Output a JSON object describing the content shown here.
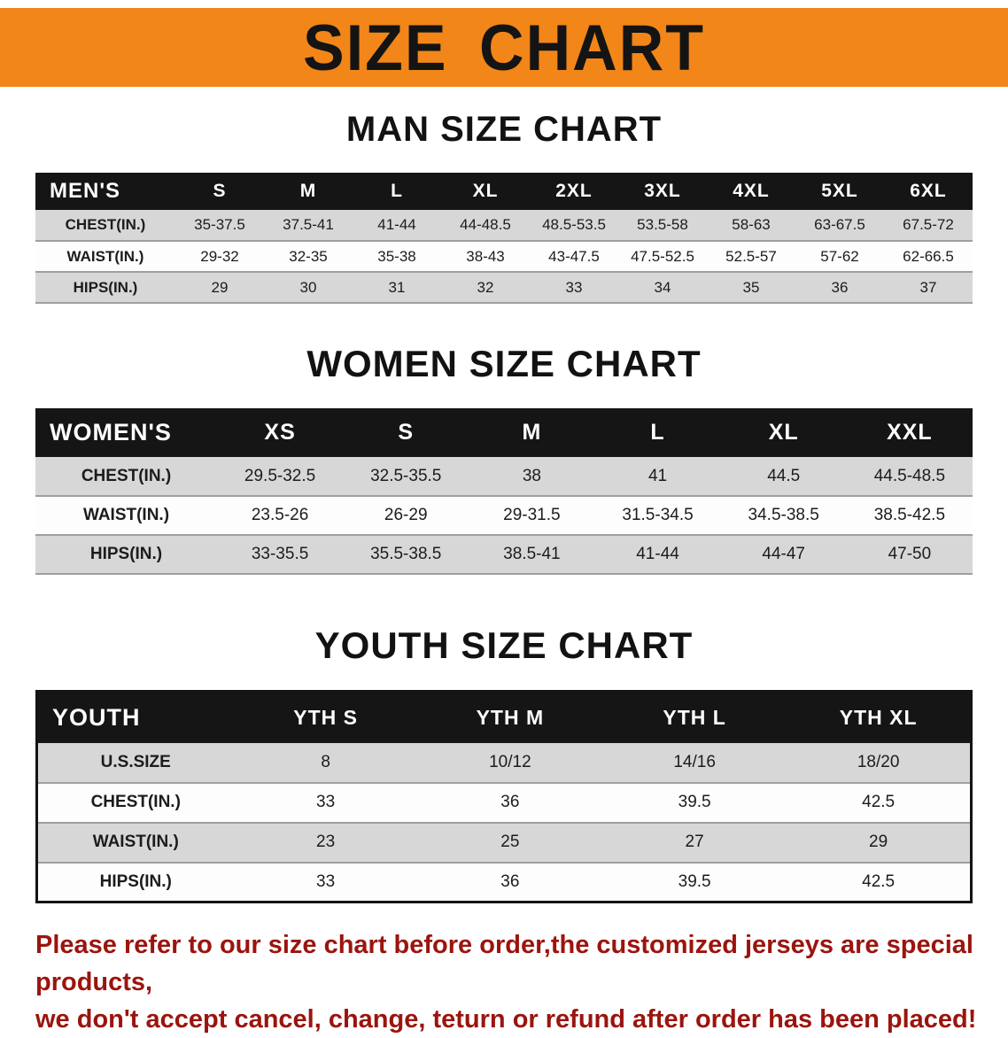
{
  "banner": {
    "title": "SIZE CHART"
  },
  "colors": {
    "banner_bg": "#f28618",
    "table_header_bg": "#151515",
    "row_alt_bg": "#d7d7d7",
    "footer_text": "#9b140e"
  },
  "sections": [
    {
      "key": "mens",
      "heading": "MAN SIZE CHART",
      "table": {
        "corner_label": "MEN'S",
        "columns": [
          "S",
          "M",
          "L",
          "XL",
          "2XL",
          "3XL",
          "4XL",
          "5XL",
          "6XL"
        ],
        "rows": [
          {
            "label": "CHEST(IN.)",
            "values": [
              "35-37.5",
              "37.5-41",
              "41-44",
              "44-48.5",
              "48.5-53.5",
              "53.5-58",
              "58-63",
              "63-67.5",
              "67.5-72"
            ]
          },
          {
            "label": "WAIST(IN.)",
            "values": [
              "29-32",
              "32-35",
              "35-38",
              "38-43",
              "43-47.5",
              "47.5-52.5",
              "52.5-57",
              "57-62",
              "62-66.5"
            ]
          },
          {
            "label": "HIPS(IN.)",
            "values": [
              "29",
              "30",
              "31",
              "32",
              "33",
              "34",
              "35",
              "36",
              "37"
            ]
          }
        ]
      }
    },
    {
      "key": "womens",
      "heading": "WOMEN SIZE CHART",
      "table": {
        "corner_label": "WOMEN'S",
        "columns": [
          "XS",
          "S",
          "M",
          "L",
          "XL",
          "XXL"
        ],
        "rows": [
          {
            "label": "CHEST(IN.)",
            "values": [
              "29.5-32.5",
              "32.5-35.5",
              "38",
              "41",
              "44.5",
              "44.5-48.5"
            ]
          },
          {
            "label": "WAIST(IN.)",
            "values": [
              "23.5-26",
              "26-29",
              "29-31.5",
              "31.5-34.5",
              "34.5-38.5",
              "38.5-42.5"
            ]
          },
          {
            "label": "HIPS(IN.)",
            "values": [
              "33-35.5",
              "35.5-38.5",
              "38.5-41",
              "41-44",
              "44-47",
              "47-50"
            ]
          }
        ]
      }
    },
    {
      "key": "youth",
      "heading": "YOUTH SIZE CHART",
      "table": {
        "corner_label": "YOUTH",
        "columns": [
          "YTH S",
          "YTH M",
          "YTH L",
          "YTH XL"
        ],
        "rows": [
          {
            "label": "U.S.SIZE",
            "values": [
              "8",
              "10/12",
              "14/16",
              "18/20"
            ]
          },
          {
            "label": "CHEST(IN.)",
            "values": [
              "33",
              "36",
              "39.5",
              "42.5"
            ]
          },
          {
            "label": "WAIST(IN.)",
            "values": [
              "23",
              "25",
              "27",
              "29"
            ]
          },
          {
            "label": "HIPS(IN.)",
            "values": [
              "33",
              "36",
              "39.5",
              "42.5"
            ]
          }
        ]
      }
    }
  ],
  "footer": {
    "line1": "Please refer to our size chart before order,the customized jerseys are special products,",
    "line2": "we don't accept cancel, change, teturn or refund after order has been placed!"
  }
}
